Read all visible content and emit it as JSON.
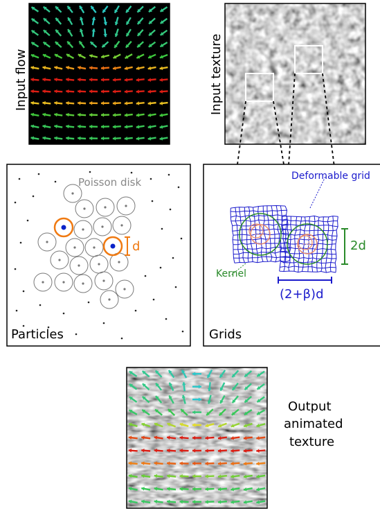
{
  "panels": {
    "input_flow": {
      "label": "Input flow"
    },
    "input_texture": {
      "label": "Input texture"
    },
    "particles": {
      "label": "Particles",
      "poisson_label": "Poisson disk",
      "d_label": "d"
    },
    "grids": {
      "label": "Grids",
      "deformable_label": "Deformable grid",
      "kernel_label": "Kernel",
      "two_d_label": "2d",
      "width_label": "(2+β)d"
    },
    "output": {
      "line1": "Output",
      "line2": "animated",
      "line3": "texture"
    }
  },
  "colors": {
    "particle_ring_highlight": "#f07a12",
    "particle_dot_highlight": "#0a23c8",
    "grid_blue": "#1a1acc",
    "kernel_green": "#2a8a2a",
    "kernel_orange": "#e88a6a",
    "circle_gray": "#777777",
    "poisson_gray": "#888888",
    "texture_white_box": "#ffffff"
  }
}
